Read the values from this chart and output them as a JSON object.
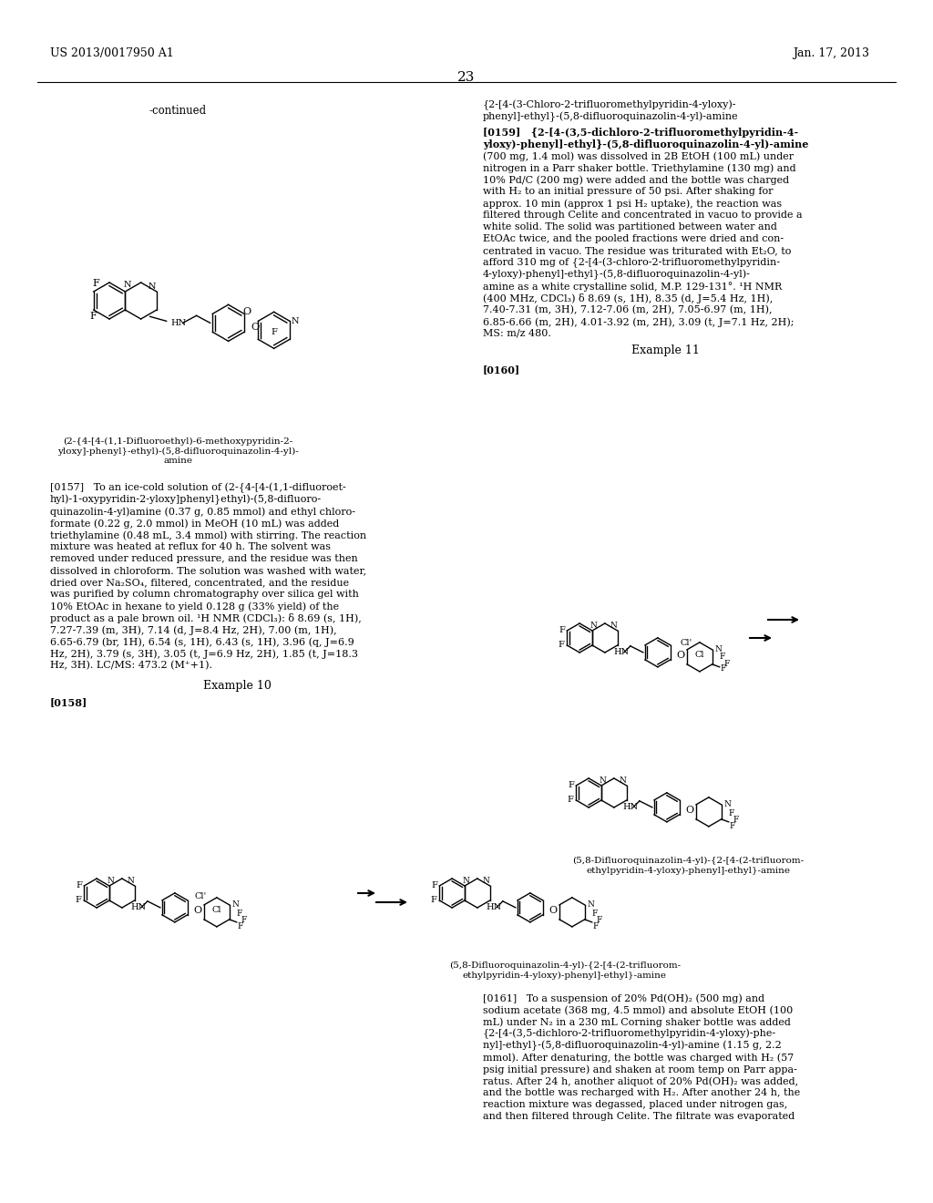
{
  "page_number": "23",
  "patent_number": "US 2013/0017950 A1",
  "patent_date": "Jan. 17, 2013",
  "background_color": "#ffffff",
  "text_color": "#000000",
  "font_size_header": 10,
  "font_size_body": 7.5,
  "font_size_page_num": 11,
  "continued_label": "-continued",
  "section_title_right": "{2-[4-(3-Chloro-2-trifluoromethylpyridin-4-yloxy)-\nphenyl]-ethyl}-(5,8-difluoroquinazolin-4-yl)-amine",
  "para_0159_title": "[0159]   {2-[4-(3,5-dichloro-2-trifluoromethylpyridin-4-\nyloxy)-phenyl]-ethyl}-(5,8-difluoroquinazolin-4-yl)-amine",
  "para_0159_body": "(700 mg, 1.4 mol) was dissolved in 2B EtOH (100 mL) under\nnitrogen in a Parr shaker bottle. Triethylamine (130 mg) and\n10% Pd/C (200 mg) were added and the bottle was charged\nwith H₂ to an initial pressure of 50 psi. After shaking for\napprox. 10 min (approx 1 psi H₂ uptake), the reaction was\nfiltered through Celite and concentrated in vacuo to provide a\nwhite solid. The solid was partitioned between water and\nEtOAc twice, and the pooled fractions were dried and con-\ncentrated in vacuo. The residue was triturated with Et₂O, to\nafford 310 mg of {2-[4-(3-chloro-2-trifluoromethylpyridin-\n4-yloxy)-phenyl]-ethyl}-(5,8-difluoroquinazolin-4-yl)-\namine as a white crystalline solid, M.P. 129-1310. ¹H NMR\n(400 MHz, CDCl₃) δ 8.69 (s, 1H), 8.35 (d, J=5.4 Hz, 1H),\n7.40-7.31 (m, 3H), 7.12-7.06 (m, 2H), 7.05-6.97 (m, 1H),\n6.85-6.66 (m, 2H), 4.01-3.92 (m, 2H), 3.09 (t, J=7.1 Hz, 2H);\nMS: m/z 480.",
  "example_10": "Example 10",
  "para_0157_title": "[0157]",
  "para_0157_body": "   To an ice-cold solution of (2-{4-[4-(1,1-difluoroet-\nhyl)-1-oxypyridin-2-yloxy]phenyl}ethyl)-(5,8-difluoro-\nquinazolin-4-yl)amine (0.37 g, 0.85 mmol) and ethyl chloro-\nformate (0.22 g, 2.0 mmol) in MeOH (10 mL) was added\ntriethylamine (0.48 mL, 3.4 mmol) with stirring. The reaction\nmixture was heated at reflux for 40 h. The solvent was\nremoved under reduced pressure, and the residue was then\ndissolved in chloroform. The solution was washed with water,\ndried over Na₂SO₄, filtered, concentrated, and the residue\nwas purified by column chromatography over silica gel with\n10% EtOAc in hexane to yield 0.128 g (33% yield) of the\nproduct as a pale brown oil. ¹H NMR (CDCl₃): δ 8.69 (s, 1H),\n7.27-7.39 (m, 3H), 7.14 (d, J=8.4 Hz, 2H), 7.00 (m, 1H),\n6.65-6.79 (br, 1H), 6.54 (s, 1H), 6.43 (s, 1H), 3.96 (q, J=6.9\nHz, 2H), 3.79 (s, 3H), 3.05 (t, J=6.9 Hz, 2H), 1.85 (t, J=18.3\nHz, 3H). LC/MS: 473.2 (M⁺+1).",
  "caption_top": "(2-{4-[4-(1,1-Difluoroethyl)-6-methoxypyridin-2-\nyloxy]-phenyl}-ethyl)-(5,8-difluoroquinazolin-4-yl)-\namine",
  "example_11": "Example 11",
  "para_0158": "[0158]",
  "para_0160": "[0160]",
  "para_0161_title": "(5,8-Difluoroquinazolin-4-yl)-{2-[4-(2-trifluorom-\nethylpyridin-4-yloxy)-phenyl]-ethyl}-amine",
  "para_0161_body": "[0161]   To a suspension of 20% Pd(OH)₂ (500 mg) and\nsodium acetate (368 mg, 4.5 mmol) and absolute EtOH (100\nmL) under N₂ in a 230 mL Corning shaker bottle was added\n{2-[4-(3,5-dichloro-2-trifluoromethylpyridin-4-yloxy)-phe-\nnyl]-ethyl}-(5,8-difluoroquinazolin-4-yl)-amine (1.15 g, 2.2\nmmol). After denaturing, the bottle was charged with H₂ (57\npsig initial pressure) and shaken at room temp on Parr appa-\nratus. After 24 h, another aliquot of 20% Pd(OH)₂ was added,\nand the bottle was recharged with H₂. After another 24 h, the\nreaction mixture was degassed, placed under nitrogen gas,\nand then filtered through Celite. The filtrate was evaporated"
}
